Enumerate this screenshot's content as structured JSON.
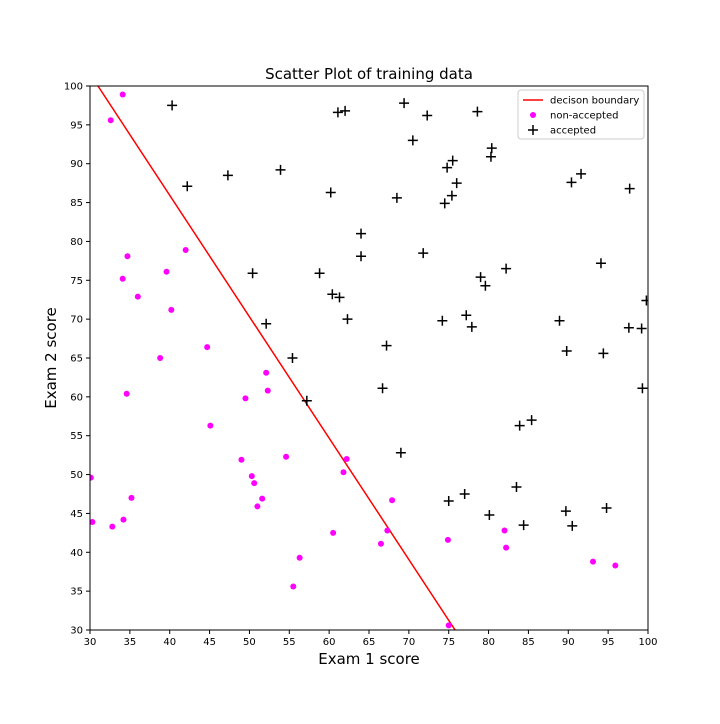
{
  "chart_data": {
    "type": "scatter",
    "title": "Scatter Plot of training data",
    "xlabel": "Exam 1 score",
    "ylabel": "Exam 2 score",
    "xlim": [
      30,
      100
    ],
    "ylim": [
      30,
      100
    ],
    "xticks": [
      30,
      35,
      40,
      45,
      50,
      55,
      60,
      65,
      70,
      75,
      80,
      85,
      90,
      95,
      100
    ],
    "yticks": [
      30,
      35,
      40,
      45,
      50,
      55,
      60,
      65,
      70,
      75,
      80,
      85,
      90,
      95,
      100
    ],
    "grid": false,
    "legend": "top-right",
    "series": [
      {
        "name": "decison boundary",
        "kind": "line",
        "color": "#ff0000",
        "x": [
          31,
          75.8
        ],
        "y": [
          100,
          30
        ]
      },
      {
        "name": "non-accepted",
        "kind": "dot",
        "color": "#ff00ff",
        "x": [
          34.1,
          32.6,
          30.1,
          30.3,
          32.8,
          34.2,
          35.2,
          34.6,
          34.7,
          34.1,
          36.0,
          38.8,
          39.6,
          40.2,
          42.0,
          44.7,
          45.1,
          49.0,
          49.5,
          50.3,
          50.6,
          51.0,
          51.6,
          52.1,
          52.3,
          54.6,
          55.5,
          56.3,
          60.5,
          61.8,
          62.2,
          66.5,
          67.3,
          67.9,
          74.9,
          75.0,
          82.0,
          82.2,
          93.1,
          95.9
        ],
        "y": [
          98.9,
          95.6,
          49.6,
          43.9,
          43.3,
          44.2,
          47.0,
          60.4,
          78.1,
          75.2,
          72.9,
          65.0,
          76.1,
          71.2,
          78.9,
          66.4,
          56.3,
          51.9,
          59.8,
          49.8,
          48.9,
          45.9,
          46.9,
          63.1,
          60.8,
          52.3,
          35.6,
          39.3,
          42.5,
          50.3,
          52.0,
          41.1,
          42.8,
          46.7,
          41.6,
          30.6,
          42.8,
          40.6,
          38.8,
          38.3
        ]
      },
      {
        "name": "accepted",
        "kind": "plus",
        "color": "#000000",
        "x": [
          40.3,
          42.2,
          47.3,
          50.4,
          52.1,
          53.9,
          55.4,
          57.2,
          58.8,
          60.2,
          60.4,
          61.1,
          61.3,
          62.0,
          62.3,
          64.0,
          64.0,
          66.7,
          67.2,
          68.5,
          69.0,
          69.4,
          70.5,
          71.8,
          72.3,
          74.2,
          74.5,
          74.8,
          75.0,
          75.4,
          75.5,
          76.0,
          77.0,
          77.2,
          77.9,
          78.6,
          79.0,
          79.6,
          80.1,
          80.3,
          80.4,
          82.2,
          83.5,
          83.9,
          84.4,
          85.4,
          88.9,
          89.7,
          89.8,
          90.4,
          90.5,
          91.6,
          94.1,
          94.4,
          94.8,
          97.6,
          97.7,
          99.2,
          99.3,
          99.8
        ],
        "y": [
          97.5,
          87.1,
          88.5,
          75.9,
          69.4,
          89.2,
          65.0,
          59.5,
          75.9,
          86.3,
          73.2,
          96.6,
          72.8,
          96.8,
          70.0,
          81.0,
          78.1,
          61.1,
          66.6,
          85.6,
          52.8,
          97.8,
          93.0,
          78.5,
          96.2,
          69.8,
          84.9,
          89.5,
          46.6,
          85.9,
          90.4,
          87.5,
          47.5,
          70.5,
          69.0,
          96.7,
          75.4,
          74.3,
          44.8,
          90.9,
          92.0,
          76.5,
          48.4,
          56.3,
          43.5,
          57.0,
          69.8,
          45.3,
          65.9,
          87.6,
          43.4,
          88.7,
          77.2,
          65.6,
          45.7,
          68.9,
          86.8,
          68.8,
          61.1,
          72.4
        ]
      }
    ]
  }
}
